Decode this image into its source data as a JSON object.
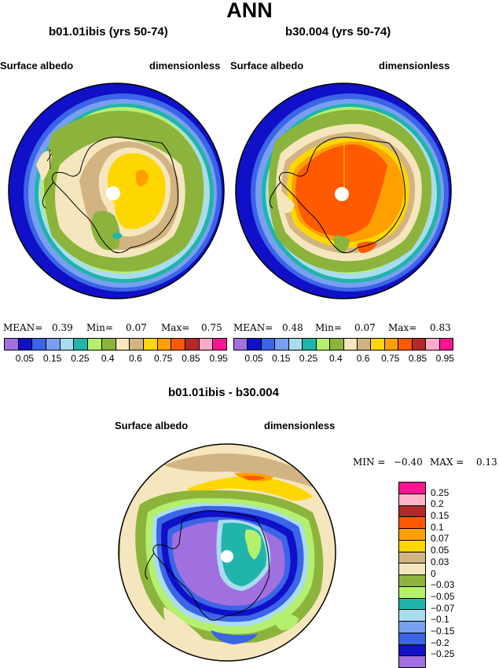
{
  "page_title": "ANN",
  "panels": [
    {
      "title": "b01.01ibis (yrs 50-74)",
      "left_label": "Surface albedo",
      "right_label": "dimensionless",
      "stats": {
        "mean_label": "MEAN=",
        "mean": "0.39",
        "min_label": "Min=",
        "min": "0.07",
        "max_label": "Max=",
        "max": "0.75"
      }
    },
    {
      "title": "b30.004 (yrs 50-74)",
      "left_label": "Surface albedo",
      "right_label": "dimensionless",
      "stats": {
        "mean_label": "MEAN=",
        "mean": "0.48",
        "min_label": "Min=",
        "min": "0.07",
        "max_label": "Max=",
        "max": "0.83"
      }
    }
  ],
  "abs_colorbar": {
    "colors": [
      "#a070e0",
      "#0f10c8",
      "#3c64e6",
      "#78a0f0",
      "#aadcf0",
      "#20b4aa",
      "#b4f06e",
      "#8cb43c",
      "#f5e6be",
      "#d2b482",
      "#ffd700",
      "#ffa000",
      "#ff5a00",
      "#b42828",
      "#ffaac8",
      "#ff1493"
    ],
    "labels": [
      "0.05",
      "0.15",
      "0.25",
      "0.4",
      "0.6",
      "0.75",
      "0.85",
      "0.95"
    ]
  },
  "diff_panel": {
    "title": "b01.01ibis - b30.004",
    "left_label": "Surface albedo",
    "right_label": "dimensionless",
    "stats": {
      "min_label": "MIN =",
      "min": "−0.40",
      "max_label": "MAX =",
      "max": "0.13"
    }
  },
  "diff_colorbar": {
    "colors": [
      "#ff1493",
      "#ffb4c8",
      "#b42828",
      "#ff5a00",
      "#ffa000",
      "#ffd700",
      "#d2b482",
      "#f5e6be",
      "#8cb43c",
      "#b4f06e",
      "#20b4aa",
      "#aadcf0",
      "#78a0f0",
      "#3c64e6",
      "#0f10c8",
      "#a070e0"
    ],
    "labels": [
      "0.25",
      "0.2",
      "0.15",
      "0.1",
      "0.07",
      "0.05",
      "0.03",
      "0",
      "−0.03",
      "−0.05",
      "−0.07",
      "−0.1",
      "−0.15",
      "−0.2",
      "−0.25"
    ]
  }
}
